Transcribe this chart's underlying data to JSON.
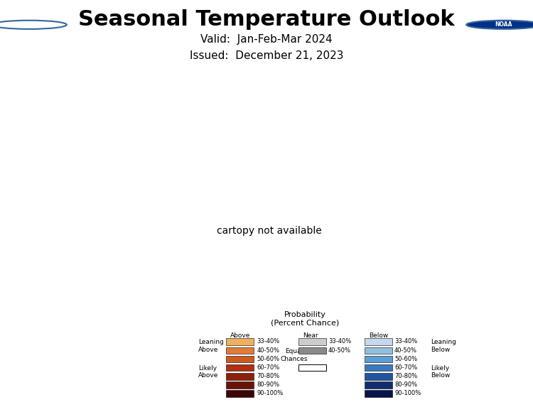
{
  "title": "Seasonal Temperature Outlook",
  "valid_line": "Valid:  Jan-Feb-Mar 2024",
  "issued_line": "Issued:  December 21, 2023",
  "title_fontsize": 22,
  "subtitle_fontsize": 11,
  "bg_color": "#ffffff",
  "colors": {
    "dark_orange": "#c1440e",
    "med_orange": "#e07b3a",
    "light_orange": "#f0b060",
    "near_light": "#cccccc",
    "near_dark": "#8a8a8a",
    "equal": "#ffffff",
    "state_border": "#aaaaaa",
    "us_border": "#777777"
  },
  "legend": {
    "rows": [
      {
        "label": "33-40%",
        "above": "#f0b060",
        "near": "#cccccc",
        "below": "#c5d8ed"
      },
      {
        "label": "40-50%",
        "above": "#e07b3a",
        "near": "#8a8a8a",
        "below": "#93bfdf"
      },
      {
        "label": "50-60%",
        "above": "#cd5a1e",
        "near": null,
        "below": "#5b9fd4"
      },
      {
        "label": "60-70%",
        "above": "#b03010",
        "near": null,
        "below": "#3a7abf"
      },
      {
        "label": "70-80%",
        "above": "#8c200a",
        "near": null,
        "below": "#2155a0"
      },
      {
        "label": "80-90%",
        "above": "#6a1208",
        "near": null,
        "below": "#122d6e"
      },
      {
        "label": "90-100%",
        "above": "#3d0505",
        "near": null,
        "below": "#06154a"
      }
    ]
  }
}
